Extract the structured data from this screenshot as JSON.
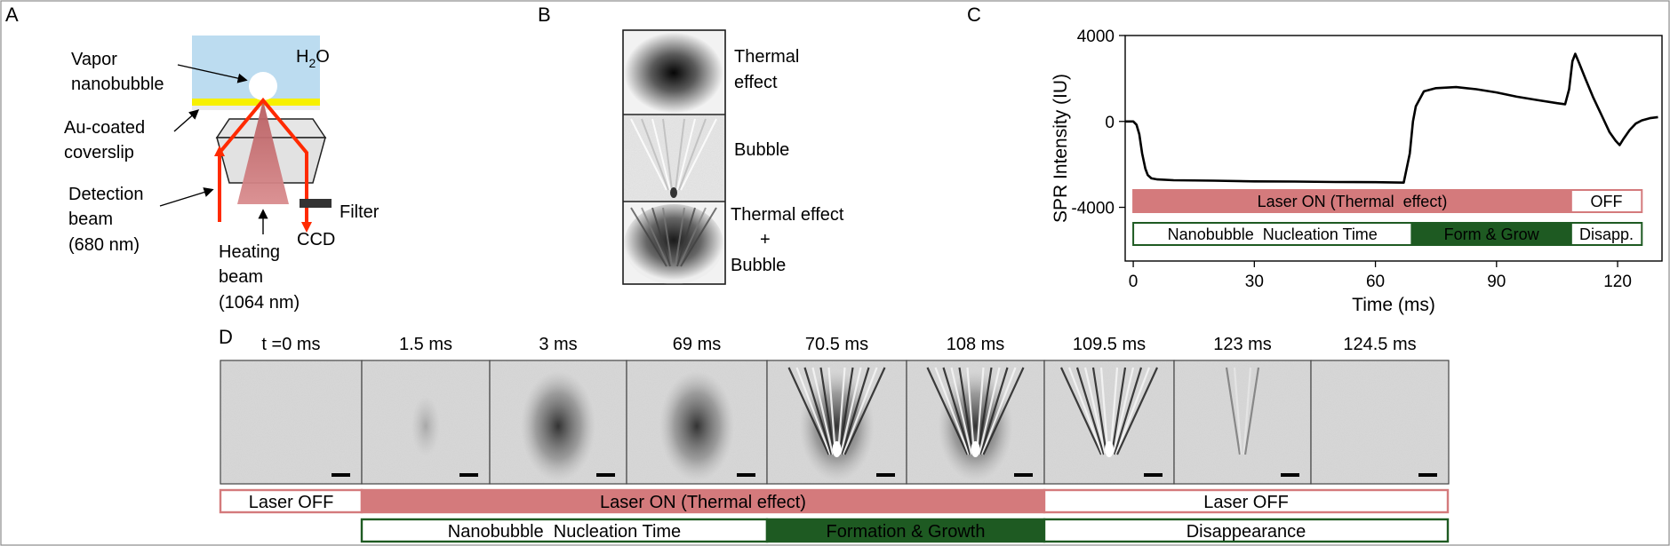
{
  "panel_labels": {
    "a": "A",
    "b": "B",
    "c": "C",
    "d": "D"
  },
  "panel_a": {
    "water": "H",
    "water_sub": "2",
    "water_o": "O",
    "vapor": [
      "Vapor",
      "nanobubble"
    ],
    "coverslip": [
      "Au-coated",
      "coverslip"
    ],
    "detection": [
      "Detection",
      "beam",
      "(680 nm)"
    ],
    "heating": [
      "Heating",
      "beam",
      "(1064 nm)"
    ],
    "filter": "Filter",
    "ccd": "CCD",
    "colors": {
      "water": "#bcdcf0",
      "gold": "#f7f000",
      "beam_red": "#ff2a00",
      "heating_cone": "#c9787a"
    }
  },
  "panel_b": {
    "labels": [
      "Thermal",
      "effect",
      "Bubble",
      "Thermal  effect",
      "+",
      "Bubble"
    ]
  },
  "chart_data": {
    "type": "line",
    "xlabel": "Time (ms)",
    "ylabel": "SPR Intensity  (IU)",
    "xlim": [
      -2,
      131
    ],
    "ylim": [
      -6500,
      4000
    ],
    "xticks": [
      "0",
      "30",
      "60",
      "90",
      "120"
    ],
    "yticks": [
      "4000",
      "0",
      "-4000"
    ],
    "series": [
      {
        "x": [
          -2,
          0,
          0.8,
          1.5,
          2.2,
          3,
          3.6,
          4.5,
          6,
          10,
          20,
          30,
          40,
          50,
          60,
          67,
          68.5,
          69.3,
          70,
          72,
          75,
          80,
          85,
          90,
          95,
          100,
          105,
          107,
          108,
          108.8,
          109.5,
          110.5,
          112,
          114,
          116,
          118,
          119.5,
          120.5,
          121.5,
          123,
          124.5,
          126,
          128,
          130
        ],
        "y": [
          0,
          0,
          -150,
          -600,
          -1500,
          -2200,
          -2500,
          -2650,
          -2700,
          -2740,
          -2760,
          -2790,
          -2800,
          -2820,
          -2830,
          -2850,
          -1500,
          0,
          700,
          1400,
          1550,
          1600,
          1500,
          1350,
          1150,
          1000,
          850,
          800,
          1500,
          2800,
          3150,
          2700,
          2000,
          1100,
          300,
          -500,
          -900,
          -1100,
          -800,
          -400,
          -100,
          50,
          150,
          200
        ]
      }
    ],
    "bars": [
      {
        "label": "Laser ON (Thermal  effect)",
        "from": 0,
        "to": 108.5,
        "style": "fill",
        "color": "#d47a7c"
      },
      {
        "label": "OFF",
        "from": 108.5,
        "to": 126,
        "style": "outline",
        "color": "#d47a7c"
      },
      {
        "label": "Nanobubble  Nucleation Time",
        "from": 0,
        "to": 69,
        "style": "outline",
        "color": "#1e5a22"
      },
      {
        "label": "Form & Grow",
        "from": 69,
        "to": 108.5,
        "style": "fill",
        "color": "#1e5a22"
      },
      {
        "label": "Disapp.",
        "from": 108.5,
        "to": 126,
        "style": "outline",
        "color": "#1e5a22"
      }
    ]
  },
  "panel_d": {
    "frames": [
      {
        "time": "t =0 ms",
        "type": "blank"
      },
      {
        "time": "1.5 ms",
        "type": "faint"
      },
      {
        "time": "3 ms",
        "type": "thermal"
      },
      {
        "time": "69 ms",
        "type": "thermal"
      },
      {
        "time": "70.5 ms",
        "type": "bubble-thermal"
      },
      {
        "time": "108 ms",
        "type": "bubble-thermal"
      },
      {
        "time": "109.5 ms",
        "type": "bubble"
      },
      {
        "time": "123 ms",
        "type": "faint-bubble"
      },
      {
        "time": "124.5 ms",
        "type": "blank"
      }
    ],
    "laser_bar": [
      {
        "label": "Laser OFF",
        "style": "outline"
      },
      {
        "label": "Laser ON (Thermal effect)",
        "style": "fill"
      },
      {
        "label": "Laser OFF",
        "style": "outline"
      }
    ],
    "phase_bar": [
      {
        "label": "Nanobubble  Nucleation Time",
        "style": "outline"
      },
      {
        "label": "Formation & Growth",
        "style": "fill"
      },
      {
        "label": "Disappearance",
        "style": "outline"
      }
    ],
    "colors": {
      "laser": "#d47a7c",
      "phase": "#1e5a22"
    }
  }
}
